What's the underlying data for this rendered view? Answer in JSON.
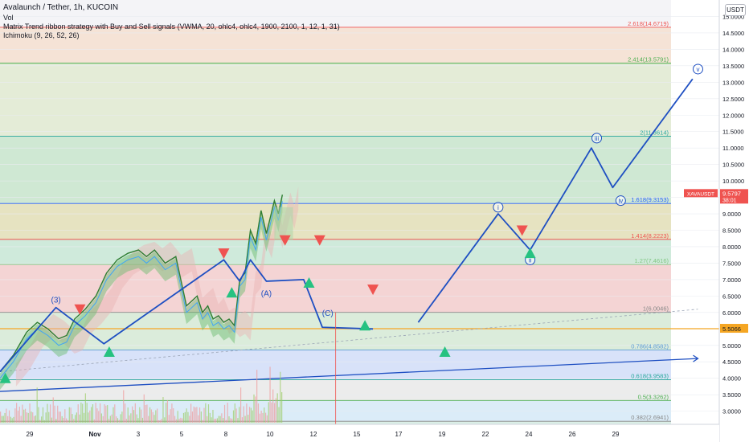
{
  "header": {
    "title": "Avalaunch / Tether, 1h, KUCOIN",
    "line2": "Vol",
    "line3": "Matrix Trend ribbon strategy with Buy and Sell signals (VWMA, 20, ohlc4, ohlc4, 1900, 2100, 1, 12, 1, 31)",
    "line4": "Ichimoku (9, 26, 52, 26)"
  },
  "price_axis": {
    "unit": "USDT"
  },
  "colors": {
    "bull_line": "#2e7d32",
    "bear_line": "#c62828",
    "wave": "#1e4fc2",
    "up_signal": "#26c281",
    "down_signal": "#ef5350",
    "orange": "#f5a623"
  },
  "chart_data": {
    "type": "line",
    "title": "Avalaunch / Tether, 1h, KUCOIN",
    "xlabel": "",
    "ylabel": "",
    "ylim": [
      2.6,
      15.5
    ],
    "x_ticks": [
      "29",
      "Nov",
      "3",
      "5",
      "8",
      "10",
      "12",
      "15",
      "17",
      "19",
      "22",
      "24",
      "26",
      "29"
    ],
    "y_ticks": [
      "15.0000",
      "14.5000",
      "14.0000",
      "13.5000",
      "13.0000",
      "12.5000",
      "12.0000",
      "11.5000",
      "11.0000",
      "10.5000",
      "10.0000",
      "9.5000",
      "9.0000",
      "8.5000",
      "8.0000",
      "7.5000",
      "7.0000",
      "6.5000",
      "6.0000",
      "5.5000",
      "5.0000",
      "4.5000",
      "4.0000",
      "3.5000",
      "3.0000"
    ],
    "price_series": {
      "name": "XAVAUSDT",
      "x": [
        0,
        5,
        10,
        14,
        18,
        22,
        25,
        28,
        32,
        36,
        40,
        44,
        48,
        52,
        55,
        58,
        62,
        66,
        70,
        74,
        76,
        78,
        80,
        82,
        84,
        86,
        88,
        90,
        92,
        94,
        96,
        98,
        100,
        101.5,
        103,
        104.5,
        106
      ],
      "y": [
        4.2,
        4.7,
        5.4,
        5.7,
        5.5,
        5.2,
        5.3,
        5.8,
        6.1,
        6.5,
        7.2,
        7.6,
        7.8,
        7.9,
        7.7,
        7.9,
        7.5,
        7.7,
        6.2,
        6.5,
        6.0,
        6.2,
        5.8,
        5.9,
        5.7,
        5.8,
        5.6,
        7.0,
        7.2,
        8.5,
        8.1,
        9.1,
        8.4,
        8.9,
        9.4,
        9.0,
        9.58
      ]
    },
    "fib_levels": [
      {
        "label": "2.618(14.6719)",
        "value": 14.6719,
        "color": "#ef5350"
      },
      {
        "label": "2.414(13.5791)",
        "value": 13.5791,
        "color": "#4caf50"
      },
      {
        "label": "2(11.3614)",
        "value": 11.3614,
        "color": "#26a69a"
      },
      {
        "label": "1.618(9.3153)",
        "value": 9.3153,
        "color": "#2962ff"
      },
      {
        "label": "1.414(8.2223)",
        "value": 8.2223,
        "color": "#ef5350"
      },
      {
        "label": "1.27(7.4616)",
        "value": 7.4616,
        "color": "#81c784"
      },
      {
        "label": "1(6.0046)",
        "value": 6.0046,
        "color": "#888888"
      },
      {
        "label": "0.786(4.8582)",
        "value": 4.8582,
        "color": "#5b9bd5"
      },
      {
        "label": "0.618(3.9583)",
        "value": 3.9583,
        "color": "#26a69a"
      },
      {
        "label": "0.5(3.3262)",
        "value": 3.3262,
        "color": "#4caf50"
      },
      {
        "label": "0.382(2.6941)",
        "value": 2.6941,
        "color": "#888888"
      }
    ],
    "horizontal_line": {
      "value": 5.5066,
      "label": "5.5066"
    },
    "last_price": {
      "symbol": "XAVAUSDT",
      "value": "9.5797",
      "countdown": "38:01"
    },
    "waves": [
      {
        "x": [
          0,
          21,
          39,
          84,
          90,
          94,
          100,
          114,
          121,
          140
        ],
        "y": [
          4.2,
          6.15,
          5.05,
          7.6,
          6.95,
          7.6,
          6.95,
          7.0,
          5.55,
          5.5
        ]
      },
      {
        "x": [
          157,
          187,
          199,
          222,
          230,
          260
        ],
        "y": [
          5.7,
          9.0,
          7.9,
          11.0,
          9.8,
          13.1
        ]
      }
    ],
    "wave_labels": [
      {
        "text": "(3)",
        "x": 21,
        "y": 6.3
      },
      {
        "text": "(A)",
        "x": 100,
        "y": 6.5
      },
      {
        "text": "(C)",
        "x": 123,
        "y": 5.9
      },
      {
        "text": "i",
        "x": 187,
        "y": 9.2
      },
      {
        "text": "ii",
        "x": 199,
        "y": 7.6
      },
      {
        "text": "iii",
        "x": 224,
        "y": 11.3
      },
      {
        "text": "iv",
        "x": 233,
        "y": 9.4
      },
      {
        "text": "v",
        "x": 262,
        "y": 13.4
      }
    ],
    "buy_signals": [
      {
        "x": 2,
        "y": 4.0
      },
      {
        "x": 41,
        "y": 4.8
      },
      {
        "x": 87,
        "y": 6.6
      },
      {
        "x": 116,
        "y": 6.9
      },
      {
        "x": 137,
        "y": 5.6
      },
      {
        "x": 167,
        "y": 4.8
      },
      {
        "x": 199,
        "y": 7.8
      }
    ],
    "sell_signals": [
      {
        "x": 30,
        "y": 6.1
      },
      {
        "x": 84,
        "y": 7.8
      },
      {
        "x": 107,
        "y": 8.2
      },
      {
        "x": 120,
        "y": 8.2
      },
      {
        "x": 140,
        "y": 6.7
      },
      {
        "x": 196,
        "y": 8.5
      }
    ]
  }
}
